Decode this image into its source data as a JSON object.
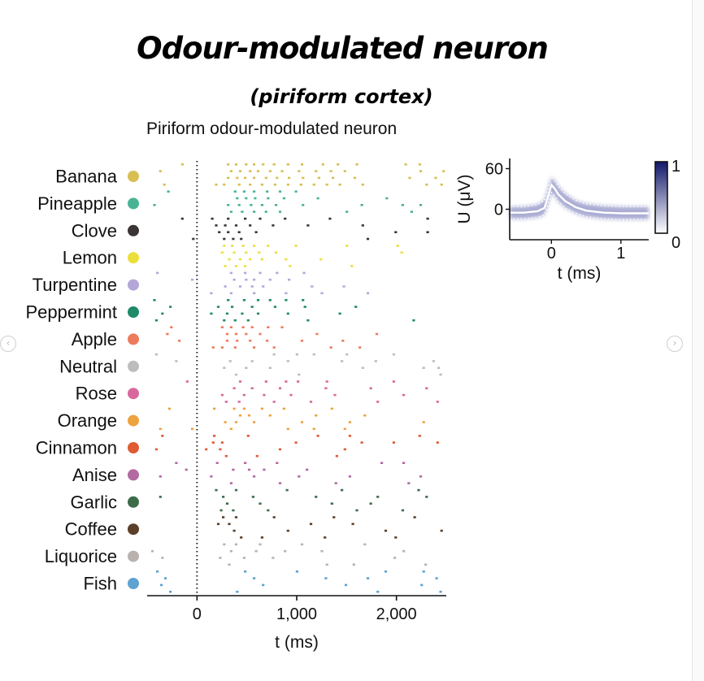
{
  "page": {
    "title": "Odour-modulated neuron",
    "subtitle": "(piriform cortex)"
  },
  "nav": {
    "left_arrow": "‹",
    "right_arrow": "›"
  },
  "chart_data": [
    {
      "type": "scatter",
      "subtype": "raster",
      "title": "Piriform odour-modulated neuron",
      "xlabel": "t (ms)",
      "xlim": [
        -500,
        2500
      ],
      "xticks": [
        0,
        1000,
        2000
      ],
      "xtick_labels": [
        "0",
        "1,000",
        "2,000"
      ],
      "marker": "dotted vertical line at t = 0",
      "series": [
        {
          "name": "Banana",
          "color": "#d8bf52",
          "trials": [
            [
              -160,
              300,
              380,
              480,
              560,
              650,
              760,
              900,
              1040,
              1250,
              1400,
              1590,
              2080,
              2220
            ],
            [
              -380,
              330,
              420,
              520,
              600,
              720,
              840,
              1010,
              1180,
              1330,
              1470,
              2230,
              2460
            ],
            [
              300,
              390,
              470,
              560,
              680,
              790,
              910,
              1050,
              1210,
              1350,
              1570,
              2120,
              2380
            ],
            [
              -340,
              180,
              260,
              410,
              520,
              640,
              770,
              900,
              1030,
              1160,
              1290,
              1420,
              1650,
              2290,
              2440
            ]
          ]
        },
        {
          "name": "Pineapple",
          "color": "#49b494",
          "trials": [
            [
              -300,
              370,
              460,
              560,
              690,
              820,
              980
            ],
            [
              390,
              480,
              570,
              700,
              860,
              1200,
              1890
            ],
            [
              -440,
              300,
              410,
              530,
              640,
              780,
              1050,
              1640,
              2050,
              2230
            ],
            [
              330,
              440,
              560,
              680,
              820,
              1490,
              2140
            ]
          ]
        },
        {
          "name": "Clove",
          "color": "#3b3535",
          "trials": [
            [
              -160,
              140,
              300,
              470,
              620,
              870,
              1320,
              2300
            ],
            [
              180,
              270,
              380,
              520,
              750,
              1100,
              1650
            ],
            [
              210,
              300,
              410,
              580,
              1980,
              2300
            ],
            [
              -50,
              260,
              350,
              430,
              1700
            ]
          ]
        },
        {
          "name": "Lemon",
          "color": "#ecdf3c",
          "trials": [
            [
              260,
              340,
              450,
              560,
              700,
              980,
              1490,
              2000
            ],
            [
              240,
              360,
              480,
              610,
              780,
              2040
            ],
            [
              310,
              420,
              520,
              640,
              880,
              1230
            ],
            [
              270,
              380,
              470,
              920,
              1540
            ]
          ]
        },
        {
          "name": "Turpentine",
          "color": "#b5a6d8",
          "trials": [
            [
              -410,
              330,
              470,
              620,
              790,
              1060
            ],
            [
              -60,
              360,
              480,
              560,
              720,
              910
            ],
            [
              270,
              420,
              540,
              650,
              1140,
              1460
            ],
            [
              130,
              330,
              560,
              880,
              1240,
              1700
            ]
          ]
        },
        {
          "name": "Peppermint",
          "color": "#1f8a68",
          "trials": [
            [
              -440,
              300,
              460,
              600,
              720,
              880,
              1050
            ],
            [
              -280,
              200,
              340,
              540,
              770,
              1070,
              1580
            ],
            [
              -360,
              130,
              290,
              440,
              600,
              900,
              1420
            ],
            [
              -420,
              260,
              370,
              500,
              1100,
              2160
            ]
          ]
        },
        {
          "name": "Apple",
          "color": "#ec7b5d",
          "trials": [
            [
              -270,
              240,
              330,
              450,
              540,
              700,
              840
            ],
            [
              -310,
              290,
              380,
              480,
              620,
              1190,
              1790
            ],
            [
              -190,
              290,
              390,
              520,
              690,
              1040,
              1450
            ],
            [
              150,
              240,
              370,
              560,
              760,
              1330,
              1620
            ]
          ]
        },
        {
          "name": "Neutral",
          "color": "#bdbdbd",
          "trials": [
            [
              -420,
              760,
              990,
              1160,
              1490,
              1960
            ],
            [
              -220,
              320,
              540,
              900,
              1440,
              1780,
              2360
            ],
            [
              260,
              480,
              720,
              1650,
              2260,
              2410
            ],
            [
              380,
              1010,
              2430
            ]
          ]
        },
        {
          "name": "Rose",
          "color": "#d8679d",
          "trials": [
            [
              -110,
              420,
              680,
              880,
              1000,
              1290,
              1960
            ],
            [
              360,
              540,
              820,
              1280,
              1730,
              2290
            ],
            [
              240,
              460,
              660,
              930,
              1370,
              2060
            ],
            [
              280,
              410,
              760,
              1130,
              1800,
              2400
            ]
          ]
        },
        {
          "name": "Orange",
          "color": "#eda33f",
          "trials": [
            [
              -290,
              160,
              360,
              460,
              640,
              860,
              1340
            ],
            [
              420,
              510,
              720,
              1180,
              1670
            ],
            [
              270,
              380,
              560,
              1040,
              1520,
              2260
            ],
            [
              -380,
              -60,
              330,
              900,
              1160,
              1470
            ]
          ]
        },
        {
          "name": "Cinnamon",
          "color": "#df5b34",
          "trials": [
            [
              -360,
              160,
              500,
              1200,
              1520,
              2220
            ],
            [
              150,
              240,
              980,
              1640,
              1960,
              2400
            ],
            [
              -420,
              80,
              220,
              820,
              1470
            ],
            [
              280,
              590,
              1390
            ]
          ]
        },
        {
          "name": "Anise",
          "color": "#b26aa0",
          "trials": [
            [
              -220,
              190,
              470,
              790,
              1840,
              2060
            ],
            [
              -120,
              350,
              510,
              660,
              1090
            ],
            [
              -380,
              130,
              560,
              1010,
              1520,
              2230
            ],
            [
              330,
              820,
              1380,
              2110
            ]
          ]
        },
        {
          "name": "Garlic",
          "color": "#3c6c4a",
          "trials": [
            [
              180,
              380,
              890,
              1440,
              2210
            ],
            [
              -380,
              250,
              550,
              1180,
              1800,
              2290
            ],
            [
              290,
              620,
              1340,
              1730
            ],
            [
              230,
              350,
              700,
              1590,
              2050
            ]
          ]
        },
        {
          "name": "Coffee",
          "color": "#5c3f28",
          "trials": [
            [
              250,
              380,
              760,
              1360,
              2170
            ],
            [
              200,
              310,
              1130,
              1550
            ],
            [
              360,
              900,
              1880,
              2440
            ],
            [
              430,
              640,
              1270,
              1980
            ]
          ]
        },
        {
          "name": "Liquorice",
          "color": "#b9b2ae",
          "trials": [
            [
              260,
              380,
              620,
              1040,
              1670
            ],
            [
              -460,
              330,
              580,
              870,
              1240,
              2060
            ],
            [
              -360,
              220,
              460,
              750,
              1970
            ],
            [
              310,
              1290,
              1560,
              2280
            ]
          ]
        },
        {
          "name": "Fish",
          "color": "#5fa3d0",
          "trials": [
            [
              -410,
              470,
              990,
              1880,
              2260
            ],
            [
              -330,
              560,
              1280,
              1700,
              2390
            ],
            [
              -370,
              650,
              1480,
              2240
            ],
            [
              -280,
              390,
              1800,
              2430
            ]
          ]
        }
      ]
    },
    {
      "type": "line",
      "subtype": "waveform density",
      "xlabel": "t (ms)",
      "ylabel": "U (μV)",
      "xlim": [
        -0.6,
        1.4
      ],
      "ylim": [
        -45,
        75
      ],
      "xticks": [
        0,
        1
      ],
      "yticks": [
        0,
        60
      ],
      "x": [
        -0.6,
        -0.4,
        -0.2,
        -0.1,
        -0.05,
        0,
        0.05,
        0.1,
        0.2,
        0.35,
        0.5,
        0.75,
        1.0,
        1.4
      ],
      "series": [
        {
          "name": "mean waveform",
          "values": [
            -5,
            -5,
            -3,
            2,
            18,
            36,
            30,
            22,
            12,
            3,
            -2,
            -5,
            -6,
            -6
          ]
        },
        {
          "name": "upper bound",
          "values": [
            4,
            4,
            7,
            13,
            30,
            48,
            42,
            34,
            23,
            13,
            8,
            5,
            4,
            4
          ]
        },
        {
          "name": "lower bound",
          "values": [
            -14,
            -14,
            -12,
            -8,
            7,
            25,
            19,
            11,
            2,
            -6,
            -11,
            -14,
            -15,
            -15
          ]
        }
      ],
      "colorbar": {
        "min": "0",
        "max": "1",
        "min_color": "#ffffff",
        "max_color": "#11176b"
      }
    }
  ]
}
